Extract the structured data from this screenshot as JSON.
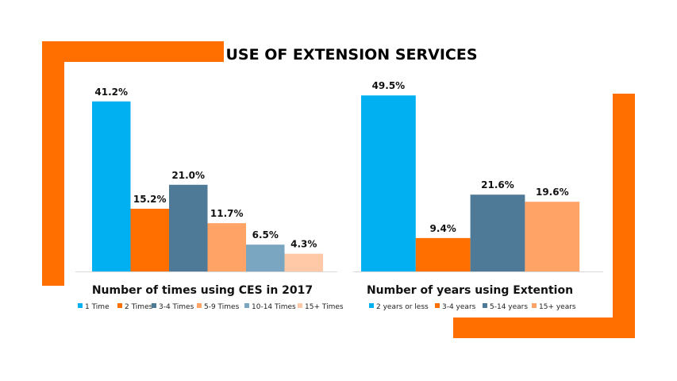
{
  "title": "USE OF EXTENSION SERVICES",
  "colors": {
    "frame": "#FF6F00"
  },
  "chart_data": [
    {
      "type": "bar",
      "title": "Number of times using CES in 2017",
      "categories": [
        "1 Time",
        "2 Times",
        "3-4 Times",
        "5-9 Times",
        "10-14 Times",
        "15+ Times"
      ],
      "values": [
        41.2,
        15.2,
        21.0,
        11.7,
        6.5,
        4.3
      ],
      "labels": [
        "41.2%",
        "15.2%",
        "21.0%",
        "11.7%",
        "6.5%",
        "4.3%"
      ],
      "colors": [
        "#00B0F0",
        "#FF6F00",
        "#4E7A98",
        "#FFA366",
        "#7BA6C2",
        "#FFC9A8"
      ],
      "ylim": [
        0,
        45
      ],
      "grid": false,
      "legend": "bottom"
    },
    {
      "type": "bar",
      "title": "Number of years using Extention",
      "categories": [
        "2 years or less",
        "3-4 years",
        "5-14 years",
        "15+ years"
      ],
      "values": [
        49.5,
        9.4,
        21.6,
        19.6
      ],
      "labels": [
        "49.5%",
        "9.4%",
        "21.6%",
        "19.6%"
      ],
      "colors": [
        "#00B0F0",
        "#FF6F00",
        "#4E7A98",
        "#FFA366"
      ],
      "ylim": [
        0,
        52
      ],
      "grid": false,
      "legend": "bottom"
    }
  ]
}
